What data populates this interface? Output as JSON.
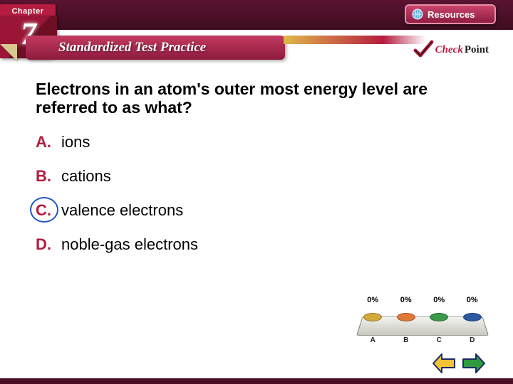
{
  "colors": {
    "brand_dark": "#4a0f25",
    "brand_mid": "#8d1a3e",
    "brand_light": "#c33a5e",
    "accent_red": "#b51c3f",
    "gold": "#e0b84a",
    "circle_blue": "#2156c7",
    "arrow_prev": "#f2c238",
    "arrow_next": "#2e9b3e",
    "arrow_outline": "#1a2a66"
  },
  "header": {
    "chapter_label": "Chapter",
    "chapter_number": "7",
    "resources_label": "Resources"
  },
  "section": {
    "title": "Standardized Test Practice"
  },
  "checkpoint": {
    "check": "Check",
    "point": "Point"
  },
  "question": {
    "text": "Electrons in an atom's outer most energy level are referred to as what?",
    "options": [
      {
        "letter": "A.",
        "text": "ions",
        "selected": false
      },
      {
        "letter": "B.",
        "text": "cations",
        "selected": false
      },
      {
        "letter": "C.",
        "text": "valence electrons",
        "selected": true
      },
      {
        "letter": "D.",
        "text": "noble-gas electrons",
        "selected": false
      }
    ]
  },
  "poll": {
    "percent_label": "0%",
    "chips": [
      {
        "label": "A",
        "color": "#d4a838"
      },
      {
        "label": "B",
        "color": "#e07838"
      },
      {
        "label": "C",
        "color": "#3a9a4a"
      },
      {
        "label": "D",
        "color": "#2a5aa0"
      }
    ]
  }
}
